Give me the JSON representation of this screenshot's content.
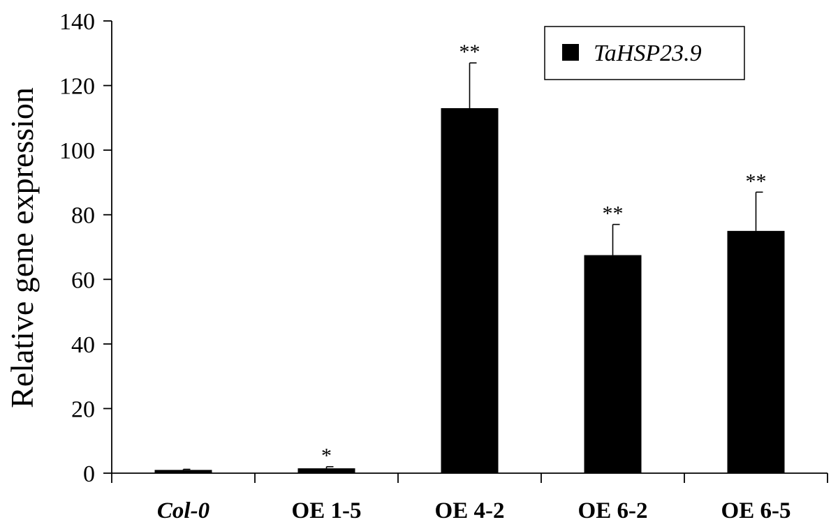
{
  "chart_data": {
    "type": "bar",
    "title": "",
    "xlabel": "",
    "ylabel": "Relative gene expression",
    "ylim": [
      0,
      140
    ],
    "yticks": [
      0,
      20,
      40,
      60,
      80,
      100,
      120,
      140
    ],
    "grid": false,
    "legend_position": "top-right",
    "categories": [
      "Col-0",
      "OE 1-5",
      "OE 4-2",
      "OE 6-2",
      "OE 6-5"
    ],
    "category_italic": [
      true,
      false,
      false,
      false,
      false
    ],
    "series": [
      {
        "name": "TaHSP23.9",
        "color": "#000000",
        "values": [
          1.0,
          1.5,
          113.0,
          67.5,
          75.0
        ],
        "errors": [
          0.2,
          0.5,
          14.0,
          9.5,
          12.0
        ],
        "significance": [
          "",
          "*",
          "**",
          "**",
          "**"
        ]
      }
    ]
  }
}
